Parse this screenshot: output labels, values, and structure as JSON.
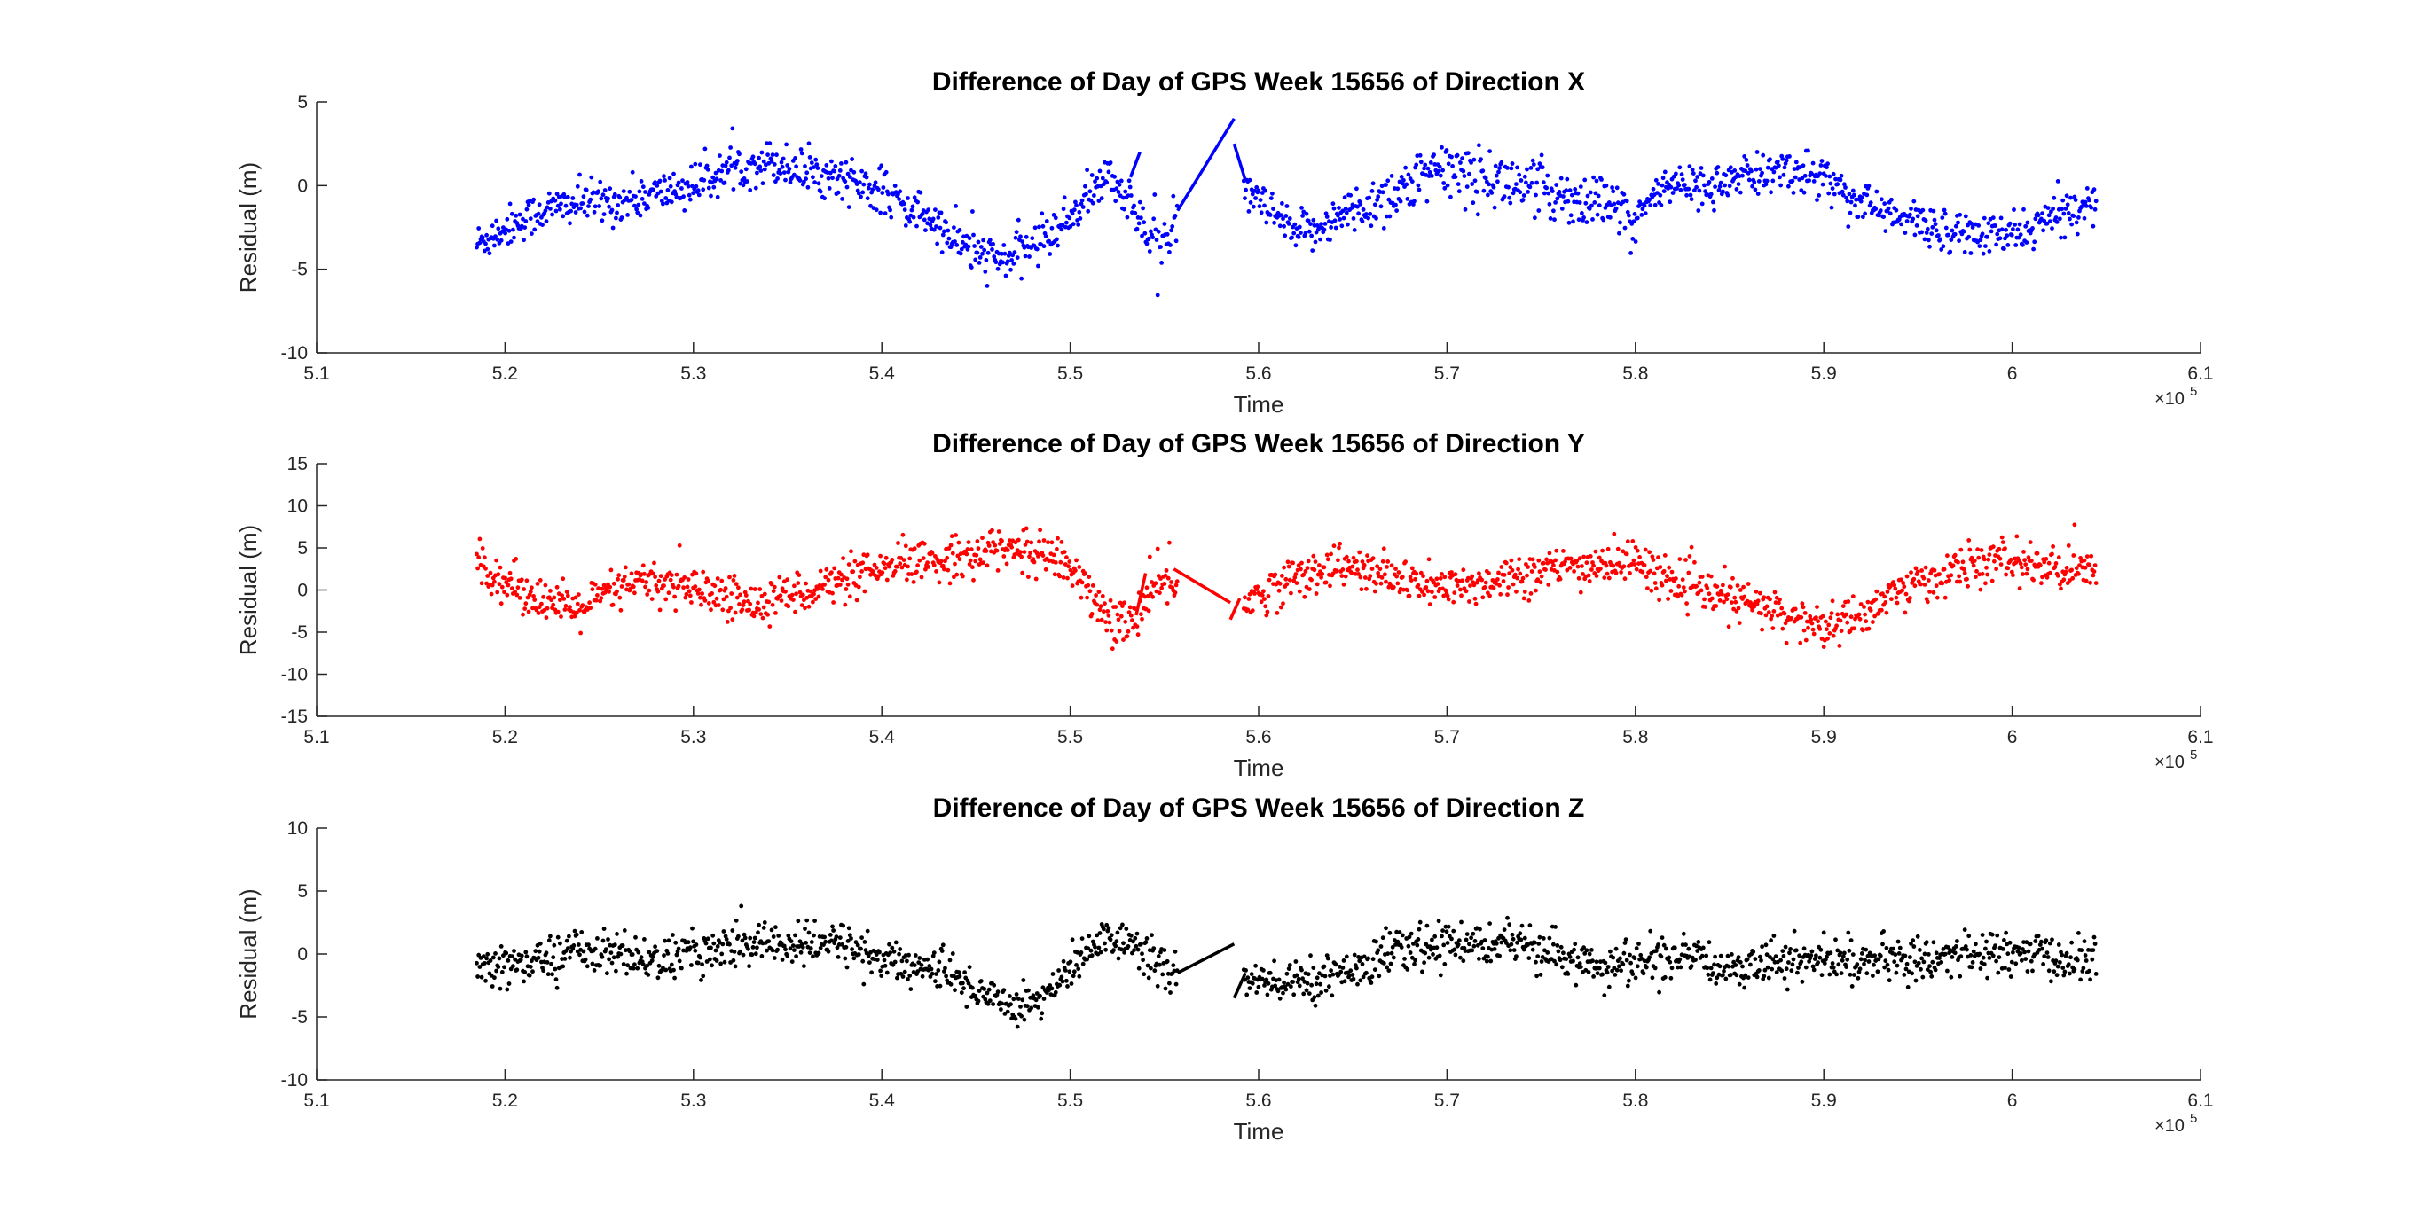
{
  "chart_data": [
    {
      "type": "scatter",
      "title": "Difference of Day of GPS Week 15656 of Direction X",
      "xlabel": "Time",
      "ylabel": "Residual (m)",
      "xlim": [
        510000,
        610000
      ],
      "ylim": [
        -10,
        5
      ],
      "x_ticks": [
        "5.1",
        "5.2",
        "5.3",
        "5.4",
        "5.5",
        "5.6",
        "5.7",
        "5.8",
        "5.9",
        "6",
        "6.1"
      ],
      "y_ticks": [
        "-10",
        "-5",
        "0",
        "5"
      ],
      "x_exponent": "×10",
      "x_exponent_power": "5",
      "color": "#0000ff",
      "series": [
        {
          "values_description": "dense residual points",
          "trend": [
            [
              518500,
              -3.5
            ],
            [
              520000,
              -2.5
            ],
            [
              522000,
              -1.5
            ],
            [
              524000,
              -1.0
            ],
            [
              526000,
              -1.0
            ],
            [
              528000,
              -0.5
            ],
            [
              530000,
              0.0
            ],
            [
              532000,
              1.0
            ],
            [
              534000,
              1.5
            ],
            [
              536000,
              0.8
            ],
            [
              538000,
              0.5
            ],
            [
              540000,
              -0.5
            ],
            [
              542000,
              -1.5
            ],
            [
              543500,
              -3.0
            ],
            [
              545000,
              -4.0
            ],
            [
              546500,
              -4.5
            ],
            [
              548000,
              -3.5
            ],
            [
              549500,
              -2.5
            ],
            [
              551000,
              -0.5
            ],
            [
              552000,
              0.5
            ],
            [
              553000,
              -0.5
            ],
            [
              554000,
              -3.0
            ],
            [
              555500,
              -3.0
            ],
            [
              559000,
              0.0
            ],
            [
              560500,
              -1.5
            ],
            [
              562000,
              -3.0
            ],
            [
              564000,
              -2.0
            ],
            [
              566000,
              -1.0
            ],
            [
              568000,
              0.0
            ],
            [
              570000,
              1.0
            ],
            [
              572000,
              0.5
            ],
            [
              574000,
              0.0
            ],
            [
              576000,
              -0.5
            ],
            [
              578000,
              -1.0
            ],
            [
              580000,
              -2.0
            ],
            [
              581500,
              0.0
            ],
            [
              584000,
              0.0
            ],
            [
              586000,
              0.5
            ],
            [
              588000,
              1.0
            ],
            [
              590000,
              0.5
            ],
            [
              592000,
              -1.0
            ],
            [
              594000,
              -2.0
            ],
            [
              596000,
              -2.5
            ],
            [
              598000,
              -3.0
            ],
            [
              600000,
              -3.0
            ],
            [
              602000,
              -2.0
            ],
            [
              604000,
              -1.0
            ],
            [
              604500,
              -1.0
            ]
          ],
          "line_segments": [
            [
              [
                553200,
                0.5
              ],
              [
                553700,
                2.0
              ]
            ],
            [
              [
                555700,
                -1.5
              ],
              [
                558700,
                4.0
              ]
            ],
            [
              [
                558700,
                2.5
              ],
              [
                559300,
                0.3
              ]
            ]
          ]
        }
      ]
    },
    {
      "type": "scatter",
      "title": "Difference of Day of GPS Week 15656 of Direction Y",
      "xlabel": "Time",
      "ylabel": "Residual (m)",
      "xlim": [
        510000,
        610000
      ],
      "ylim": [
        -15,
        15
      ],
      "x_ticks": [
        "5.1",
        "5.2",
        "5.3",
        "5.4",
        "5.5",
        "5.6",
        "5.7",
        "5.8",
        "5.9",
        "6",
        "6.1"
      ],
      "y_ticks": [
        "-15",
        "-10",
        "-5",
        "0",
        "5",
        "10",
        "15"
      ],
      "x_exponent": "×10",
      "x_exponent_power": "5",
      "color": "#ff0000",
      "series": [
        {
          "values_description": "dense residual points",
          "trend": [
            [
              518500,
              3.5
            ],
            [
              520000,
              1.0
            ],
            [
              522000,
              -1.0
            ],
            [
              523500,
              -2.5
            ],
            [
              525000,
              -1.0
            ],
            [
              527000,
              1.0
            ],
            [
              529000,
              0.5
            ],
            [
              531000,
              -0.5
            ],
            [
              533000,
              -1.5
            ],
            [
              535000,
              -0.5
            ],
            [
              537000,
              0.5
            ],
            [
              539000,
              1.5
            ],
            [
              541000,
              3.0
            ],
            [
              543000,
              3.5
            ],
            [
              545000,
              4.5
            ],
            [
              547000,
              5.0
            ],
            [
              549000,
              4.0
            ],
            [
              550500,
              2.0
            ],
            [
              551500,
              -2.5
            ],
            [
              552500,
              -4.0
            ],
            [
              553500,
              -3.0
            ],
            [
              555000,
              1.0
            ],
            [
              556500,
              2.0
            ],
            [
              559000,
              -2.0
            ],
            [
              560500,
              0.0
            ],
            [
              562000,
              1.5
            ],
            [
              564000,
              3.0
            ],
            [
              566000,
              2.0
            ],
            [
              568000,
              1.0
            ],
            [
              570000,
              0.0
            ],
            [
              572000,
              1.0
            ],
            [
              574000,
              2.0
            ],
            [
              576000,
              2.5
            ],
            [
              578000,
              3.0
            ],
            [
              580000,
              3.5
            ],
            [
              582000,
              1.0
            ],
            [
              584000,
              -0.5
            ],
            [
              586000,
              -1.5
            ],
            [
              588000,
              -3.0
            ],
            [
              590000,
              -4.5
            ],
            [
              592000,
              -3.0
            ],
            [
              594000,
              0.0
            ],
            [
              596000,
              1.5
            ],
            [
              598000,
              3.0
            ],
            [
              600000,
              3.5
            ],
            [
              602000,
              2.5
            ],
            [
              604500,
              2.5
            ]
          ],
          "line_segments": [
            [
              [
                553500,
                -3.0
              ],
              [
                554000,
                2.0
              ]
            ],
            [
              [
                555500,
                2.5
              ],
              [
                558500,
                -1.5
              ]
            ],
            [
              [
                558500,
                -3.5
              ],
              [
                559000,
                -1.0
              ]
            ]
          ]
        }
      ]
    },
    {
      "type": "scatter",
      "title": "Difference of Day of GPS Week 15656 of Direction Z",
      "xlabel": "Time",
      "ylabel": "Residual (m)",
      "xlim": [
        510000,
        610000
      ],
      "ylim": [
        -10,
        10
      ],
      "x_ticks": [
        "5.1",
        "5.2",
        "5.3",
        "5.4",
        "5.5",
        "5.6",
        "5.7",
        "5.8",
        "5.9",
        "6",
        "6.1"
      ],
      "y_ticks": [
        "-10",
        "-5",
        "0",
        "5",
        "10"
      ],
      "x_exponent": "×10",
      "x_exponent_power": "5",
      "color": "#000000",
      "series": [
        {
          "values_description": "dense residual points",
          "trend": [
            [
              518500,
              -1.5
            ],
            [
              520000,
              -1.0
            ],
            [
              522000,
              -0.5
            ],
            [
              524000,
              0.5
            ],
            [
              526000,
              0.0
            ],
            [
              528000,
              -0.5
            ],
            [
              530000,
              0.0
            ],
            [
              532000,
              0.5
            ],
            [
              534000,
              1.0
            ],
            [
              536000,
              0.5
            ],
            [
              538000,
              1.0
            ],
            [
              540000,
              -0.5
            ],
            [
              542000,
              -1.0
            ],
            [
              544000,
              -2.0
            ],
            [
              546000,
              -3.5
            ],
            [
              547500,
              -4.0
            ],
            [
              549000,
              -3.0
            ],
            [
              550500,
              -0.5
            ],
            [
              552000,
              1.5
            ],
            [
              553500,
              0.5
            ],
            [
              555000,
              -1.0
            ],
            [
              556000,
              -2.0
            ],
            [
              559000,
              -2.0
            ],
            [
              561000,
              -2.5
            ],
            [
              563000,
              -2.0
            ],
            [
              565000,
              -1.0
            ],
            [
              567000,
              0.0
            ],
            [
              569000,
              0.5
            ],
            [
              571000,
              1.0
            ],
            [
              573000,
              1.0
            ],
            [
              575000,
              0.0
            ],
            [
              577000,
              -0.5
            ],
            [
              579000,
              -1.0
            ],
            [
              581000,
              -0.5
            ],
            [
              583000,
              -0.5
            ],
            [
              585000,
              -1.0
            ],
            [
              587000,
              -0.5
            ],
            [
              589000,
              -0.5
            ],
            [
              591000,
              -0.5
            ],
            [
              593000,
              -0.5
            ],
            [
              595000,
              -0.5
            ],
            [
              597000,
              0.0
            ],
            [
              599000,
              0.0
            ],
            [
              601000,
              0.0
            ],
            [
              603000,
              -0.5
            ],
            [
              604500,
              -0.5
            ]
          ],
          "line_segments": [
            [
              [
                555700,
                -1.5
              ],
              [
                558700,
                0.8
              ]
            ],
            [
              [
                558700,
                -3.5
              ],
              [
                559300,
                -1.5
              ]
            ]
          ]
        }
      ]
    }
  ]
}
